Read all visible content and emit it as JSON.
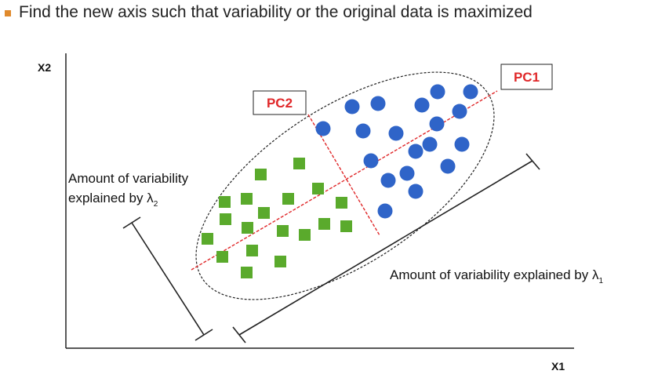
{
  "heading": {
    "text": "Find the new axis such that variability or the original data is maximized",
    "bullet_color": "#e08a2c"
  },
  "axes": {
    "x_label": "X1",
    "y_label": "X2"
  },
  "labels": {
    "pc1": "PC1",
    "pc2": "PC2",
    "lambda1_text": "Amount of variability explained by λ",
    "lambda1_sub": "1",
    "lambda2_line1": "Amount of variability",
    "lambda2_line2": "explained by λ",
    "lambda2_sub": "2"
  },
  "colors": {
    "square_fill": "#5aaa2c",
    "circle_fill": "#2f64c8",
    "pc_line": "#e0282a",
    "pc_label": "#e0282a"
  }
}
